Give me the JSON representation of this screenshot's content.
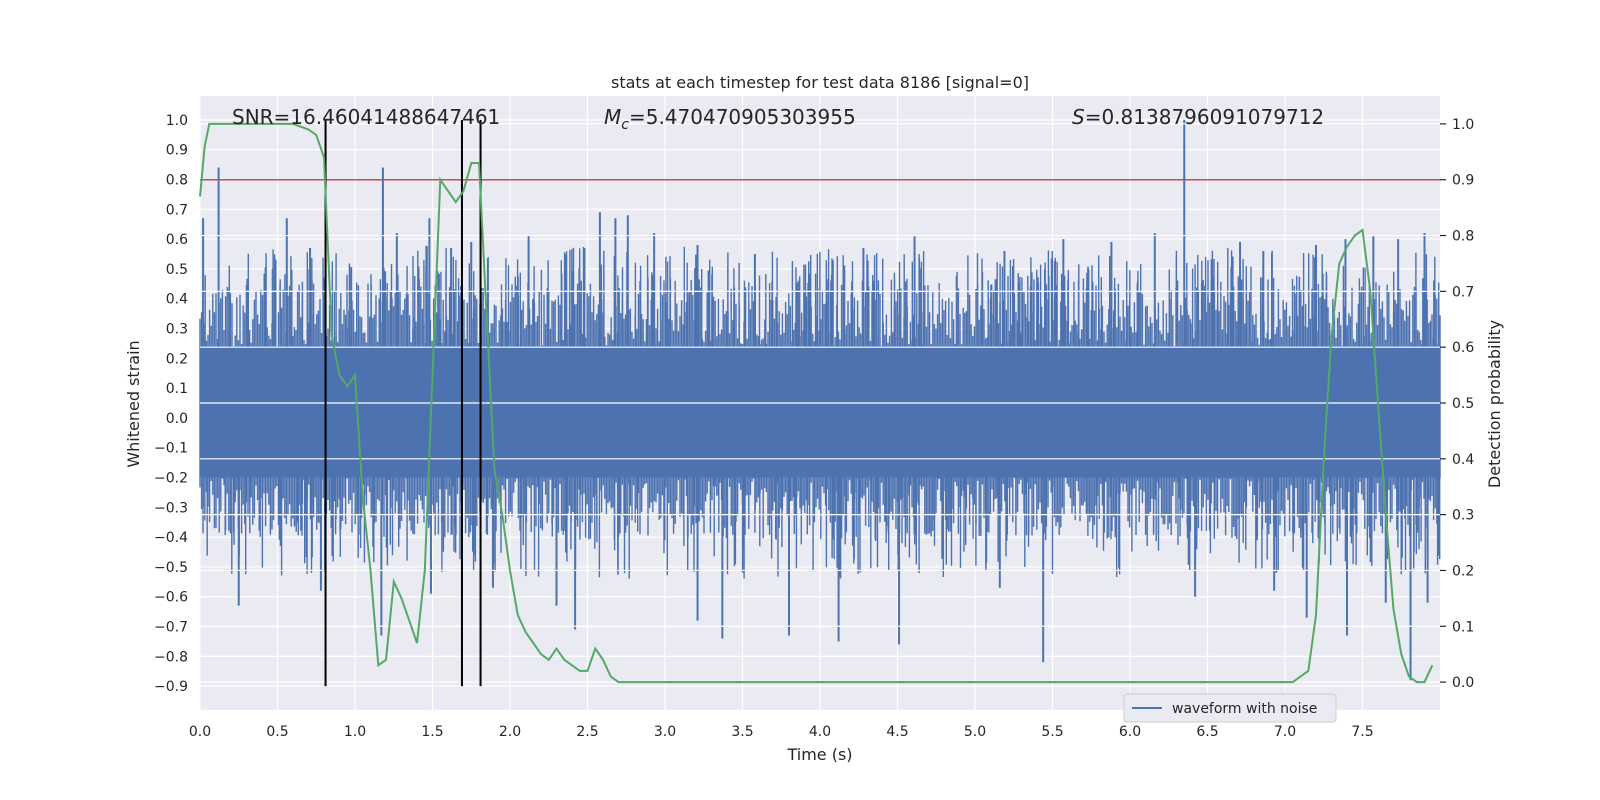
{
  "chart_data": {
    "type": "line",
    "title": "stats at each timestep for test data 8186 [signal=0]",
    "xlabel": "Time (s)",
    "ylabel_left": "Whitened strain",
    "ylabel_right": "Detection probability",
    "xlim": [
      0.0,
      8.0
    ],
    "ylim_left": [
      -0.98,
      1.08
    ],
    "ylim_right": [
      -0.05,
      1.05
    ],
    "x_ticks": [
      "0.0",
      "0.5",
      "1.0",
      "1.5",
      "2.0",
      "2.5",
      "3.0",
      "3.5",
      "4.0",
      "4.5",
      "5.0",
      "5.5",
      "6.0",
      "6.5",
      "7.0",
      "7.5"
    ],
    "y_ticks_left": [
      "-0.9",
      "-0.8",
      "-0.7",
      "-0.6",
      "-0.5",
      "-0.4",
      "-0.3",
      "-0.2",
      "-0.1",
      "0.0",
      "0.1",
      "0.2",
      "0.3",
      "0.4",
      "0.5",
      "0.6",
      "0.7",
      "0.8",
      "0.9",
      "1.0"
    ],
    "y_ticks_right": [
      "0.0",
      "0.1",
      "0.2",
      "0.3",
      "0.4",
      "0.5",
      "0.6",
      "0.7",
      "0.8",
      "0.9",
      "1.0"
    ],
    "grid": true,
    "annotations": {
      "snr": "SNR=16.46041488647461",
      "mc_symbol": "M",
      "mc_sub": "c",
      "mc_value": "=5.470470905303955",
      "s_symbol": "S",
      "s_value": "=0.8138796091079712"
    },
    "threshold_right": 0.9,
    "vertical_lines_x": [
      0.81,
      1.69,
      1.81
    ],
    "vertical_lines_ylim_left": [
      -0.9,
      1.0
    ],
    "legend": {
      "label": "waveform with noise",
      "position": "lower-right"
    },
    "colors": {
      "waveform": "#4c72b0",
      "probability": "#55a868",
      "threshold": "#c44e52",
      "vline": "#000000",
      "background": "#eaeaf2",
      "grid": "#ffffff"
    },
    "series": [
      {
        "name": "waveform with noise",
        "type": "noise-band",
        "envelope_x": [
          0.0,
          0.5,
          1.0,
          1.5,
          2.0,
          2.5,
          3.0,
          3.5,
          4.0,
          4.5,
          5.0,
          5.5,
          6.0,
          6.5,
          7.0,
          7.5,
          8.0
        ],
        "envelope_upper": [
          0.42,
          0.45,
          0.44,
          0.46,
          0.44,
          0.46,
          0.46,
          0.45,
          0.45,
          0.46,
          0.44,
          0.45,
          0.45,
          0.46,
          0.46,
          0.46,
          0.45
        ],
        "envelope_lower": [
          -0.36,
          -0.37,
          -0.37,
          -0.38,
          -0.37,
          -0.38,
          -0.38,
          -0.38,
          -0.38,
          -0.38,
          -0.37,
          -0.38,
          -0.38,
          -0.38,
          -0.38,
          -0.38,
          -0.37
        ],
        "spikes": [
          [
            0.02,
            0.67
          ],
          [
            0.12,
            0.84
          ],
          [
            0.56,
            0.67
          ],
          [
            0.71,
            0.57
          ],
          [
            1.18,
            0.84
          ],
          [
            1.27,
            0.62
          ],
          [
            1.48,
            0.67
          ],
          [
            1.62,
            0.57
          ],
          [
            1.75,
            0.59
          ],
          [
            2.12,
            0.61
          ],
          [
            2.48,
            0.57
          ],
          [
            2.58,
            0.69
          ],
          [
            2.68,
            0.67
          ],
          [
            2.76,
            0.68
          ],
          [
            2.93,
            0.62
          ],
          [
            3.21,
            0.58
          ],
          [
            3.58,
            0.55
          ],
          [
            4.28,
            0.57
          ],
          [
            4.61,
            0.61
          ],
          [
            5.19,
            0.56
          ],
          [
            5.57,
            0.6
          ],
          [
            5.88,
            0.59
          ],
          [
            6.16,
            0.62
          ],
          [
            6.35,
            1.0
          ],
          [
            6.71,
            0.59
          ],
          [
            6.86,
            0.56
          ],
          [
            7.2,
            0.58
          ],
          [
            7.39,
            0.6
          ],
          [
            7.57,
            0.61
          ],
          [
            7.73,
            0.6
          ],
          [
            7.9,
            0.62
          ],
          [
            0.25,
            -0.63
          ],
          [
            0.78,
            -0.58
          ],
          [
            1.17,
            -0.73
          ],
          [
            1.49,
            -0.59
          ],
          [
            1.89,
            -0.57
          ],
          [
            2.3,
            -0.63
          ],
          [
            2.42,
            -0.71
          ],
          [
            3.21,
            -0.68
          ],
          [
            3.37,
            -0.74
          ],
          [
            3.8,
            -0.73
          ],
          [
            4.12,
            -0.75
          ],
          [
            4.51,
            -0.76
          ],
          [
            5.16,
            -0.57
          ],
          [
            5.44,
            -0.82
          ],
          [
            6.42,
            -0.6
          ],
          [
            6.93,
            -0.58
          ],
          [
            7.14,
            -0.67
          ],
          [
            7.4,
            -0.73
          ],
          [
            7.65,
            -0.62
          ],
          [
            7.81,
            -0.88
          ],
          [
            7.92,
            -0.62
          ]
        ]
      },
      {
        "name": "detection probability",
        "axis": "right",
        "x": [
          0.0,
          0.03,
          0.06,
          0.12,
          0.2,
          0.3,
          0.4,
          0.5,
          0.6,
          0.7,
          0.75,
          0.8,
          0.85,
          0.9,
          0.95,
          1.0,
          1.05,
          1.1,
          1.15,
          1.2,
          1.25,
          1.3,
          1.35,
          1.4,
          1.45,
          1.5,
          1.55,
          1.6,
          1.65,
          1.7,
          1.75,
          1.8,
          1.85,
          1.9,
          1.95,
          2.0,
          2.05,
          2.1,
          2.15,
          2.2,
          2.25,
          2.3,
          2.35,
          2.4,
          2.45,
          2.5,
          2.55,
          2.6,
          2.65,
          2.7,
          2.75,
          2.85,
          2.95,
          3.0,
          3.5,
          4.0,
          4.3,
          4.5,
          4.6,
          4.7,
          5.0,
          5.5,
          5.6,
          6.0,
          6.5,
          7.0,
          7.05,
          7.1,
          7.15,
          7.2,
          7.25,
          7.3,
          7.35,
          7.4,
          7.45,
          7.5,
          7.55,
          7.6,
          7.65,
          7.7,
          7.75,
          7.8,
          7.85,
          7.9,
          7.95
        ],
        "y": [
          0.87,
          0.96,
          1.0,
          1.0,
          1.0,
          1.0,
          1.0,
          1.0,
          1.0,
          0.99,
          0.98,
          0.94,
          0.62,
          0.55,
          0.53,
          0.55,
          0.33,
          0.2,
          0.03,
          0.04,
          0.18,
          0.15,
          0.11,
          0.07,
          0.2,
          0.55,
          0.9,
          0.88,
          0.86,
          0.88,
          0.93,
          0.93,
          0.65,
          0.38,
          0.3,
          0.2,
          0.12,
          0.09,
          0.07,
          0.05,
          0.04,
          0.06,
          0.04,
          0.03,
          0.02,
          0.02,
          0.06,
          0.04,
          0.01,
          0.0,
          0.0,
          0.0,
          0.0,
          0.0,
          0.0,
          0.0,
          0.0,
          0.0,
          0.0,
          0.0,
          0.0,
          0.0,
          0.0,
          0.0,
          0.0,
          0.0,
          0.0,
          0.01,
          0.02,
          0.12,
          0.4,
          0.62,
          0.75,
          0.78,
          0.8,
          0.81,
          0.7,
          0.5,
          0.3,
          0.13,
          0.05,
          0.01,
          0.0,
          0.0,
          0.03
        ]
      }
    ]
  }
}
